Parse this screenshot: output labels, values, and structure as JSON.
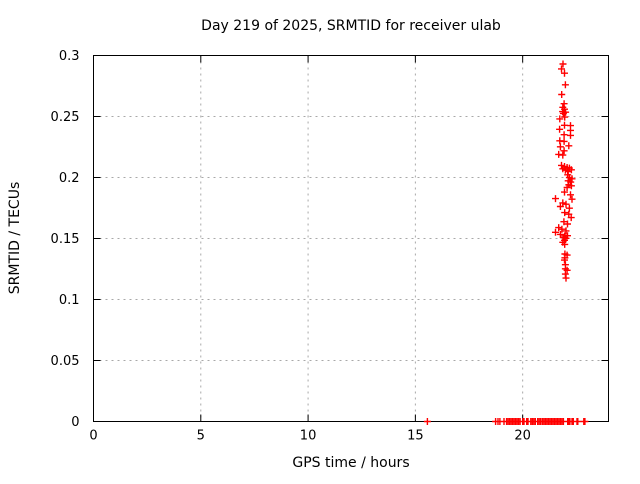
{
  "chart_data": {
    "type": "scatter",
    "title": "Day 219 of 2025, SRMTID for receiver ulab",
    "xlabel": "GPS time / hours",
    "ylabel": "SRMTID / TECUs",
    "xlim": [
      0,
      24
    ],
    "ylim": [
      0,
      0.3
    ],
    "xticks": [
      0,
      5,
      10,
      15,
      20
    ],
    "xtick_labels": [
      "0",
      "5",
      "10",
      "15",
      "20"
    ],
    "yticks": [
      0,
      0.05,
      0.1,
      0.15,
      0.2,
      0.25,
      0.3
    ],
    "ytick_labels": [
      "0",
      "0.05",
      "0.1",
      "0.15",
      "0.2",
      "0.25",
      "0.3"
    ],
    "grid": true,
    "legend": "none",
    "marker": "plus",
    "colors": {
      "marker": "#ff0000",
      "grid": "#a8a8a8",
      "border": "#000000",
      "background": "#ffffff"
    },
    "series": [
      {
        "name": "srmtid",
        "points": [
          [
            21.88,
            0.293
          ],
          [
            21.81,
            0.289
          ],
          [
            21.95,
            0.2855
          ],
          [
            21.99,
            0.276
          ],
          [
            21.82,
            0.268
          ],
          [
            21.93,
            0.2605
          ],
          [
            21.87,
            0.2575
          ],
          [
            21.95,
            0.256
          ],
          [
            21.86,
            0.254
          ],
          [
            22.0,
            0.2535
          ],
          [
            21.9,
            0.2525
          ],
          [
            21.96,
            0.2495
          ],
          [
            21.73,
            0.248
          ],
          [
            21.95,
            0.2428
          ],
          [
            22.23,
            0.2425
          ],
          [
            21.72,
            0.2395
          ],
          [
            22.23,
            0.2386
          ],
          [
            21.93,
            0.2351
          ],
          [
            22.23,
            0.2345
          ],
          [
            21.73,
            0.2301
          ],
          [
            21.93,
            0.2296
          ],
          [
            22.15,
            0.226
          ],
          [
            21.76,
            0.2252
          ],
          [
            21.93,
            0.2219
          ],
          [
            21.68,
            0.2189
          ],
          [
            21.87,
            0.2184
          ],
          [
            21.81,
            0.2099
          ],
          [
            21.95,
            0.209
          ],
          [
            22.07,
            0.2082
          ],
          [
            21.87,
            0.2071
          ],
          [
            22.18,
            0.2077
          ],
          [
            22.27,
            0.2063
          ],
          [
            21.99,
            0.206
          ],
          [
            22.12,
            0.2049
          ],
          [
            22.1,
            0.2022
          ],
          [
            22.18,
            0.2
          ],
          [
            22.3,
            0.1989
          ],
          [
            22.12,
            0.1973
          ],
          [
            22.24,
            0.1962
          ],
          [
            22.15,
            0.194
          ],
          [
            22.27,
            0.1932
          ],
          [
            22.07,
            0.1918
          ],
          [
            21.95,
            0.188
          ],
          [
            22.23,
            0.1858
          ],
          [
            21.53,
            0.1827
          ],
          [
            22.3,
            0.1822
          ],
          [
            21.87,
            0.1792
          ],
          [
            22.02,
            0.1781
          ],
          [
            21.76,
            0.1762
          ],
          [
            22.18,
            0.1748
          ],
          [
            21.96,
            0.1712
          ],
          [
            22.15,
            0.1699
          ],
          [
            22.26,
            0.1671
          ],
          [
            21.92,
            0.1638
          ],
          [
            22.09,
            0.1619
          ],
          [
            21.68,
            0.1589
          ],
          [
            21.83,
            0.1576
          ],
          [
            22.02,
            0.1562
          ],
          [
            21.53,
            0.1551
          ],
          [
            21.76,
            0.1534
          ],
          [
            21.96,
            0.1521
          ],
          [
            22.09,
            0.1523
          ],
          [
            21.9,
            0.1507
          ],
          [
            22.02,
            0.1502
          ],
          [
            21.95,
            0.1485
          ],
          [
            21.87,
            0.1469
          ],
          [
            21.96,
            0.1452
          ],
          [
            21.97,
            0.1373
          ],
          [
            22.07,
            0.1364
          ],
          [
            21.97,
            0.1342
          ],
          [
            21.95,
            0.1323
          ],
          [
            21.99,
            0.1285
          ],
          [
            21.99,
            0.1252
          ],
          [
            22.07,
            0.1239
          ],
          [
            21.99,
            0.1208
          ],
          [
            22.02,
            0.1175
          ],
          [
            15.56,
            0
          ],
          [
            18.74,
            0
          ],
          [
            18.85,
            0
          ],
          [
            18.94,
            0
          ],
          [
            19.13,
            0
          ],
          [
            19.25,
            0
          ],
          [
            19.32,
            0
          ],
          [
            19.39,
            0
          ],
          [
            19.46,
            0
          ],
          [
            19.53,
            0
          ],
          [
            19.6,
            0
          ],
          [
            19.67,
            0
          ],
          [
            19.74,
            0
          ],
          [
            19.81,
            0
          ],
          [
            19.88,
            0
          ],
          [
            20.0,
            0
          ],
          [
            20.06,
            0
          ],
          [
            20.19,
            0
          ],
          [
            20.25,
            0
          ],
          [
            20.38,
            0
          ],
          [
            20.45,
            0
          ],
          [
            20.52,
            0
          ],
          [
            20.59,
            0
          ],
          [
            20.7,
            0
          ],
          [
            20.77,
            0
          ],
          [
            20.84,
            0
          ],
          [
            20.92,
            0
          ],
          [
            20.99,
            0
          ],
          [
            21.06,
            0
          ],
          [
            21.13,
            0
          ],
          [
            21.2,
            0
          ],
          [
            21.27,
            0
          ],
          [
            21.34,
            0
          ],
          [
            21.41,
            0
          ],
          [
            21.48,
            0
          ],
          [
            21.55,
            0
          ],
          [
            21.62,
            0
          ],
          [
            21.69,
            0
          ],
          [
            21.76,
            0
          ],
          [
            21.83,
            0
          ],
          [
            21.9,
            0
          ],
          [
            22.1,
            0
          ],
          [
            22.15,
            0
          ],
          [
            22.2,
            0
          ],
          [
            22.3,
            0
          ],
          [
            22.36,
            0
          ],
          [
            22.53,
            0
          ],
          [
            22.57,
            0
          ],
          [
            22.85,
            0
          ],
          [
            22.9,
            0
          ]
        ]
      }
    ]
  }
}
